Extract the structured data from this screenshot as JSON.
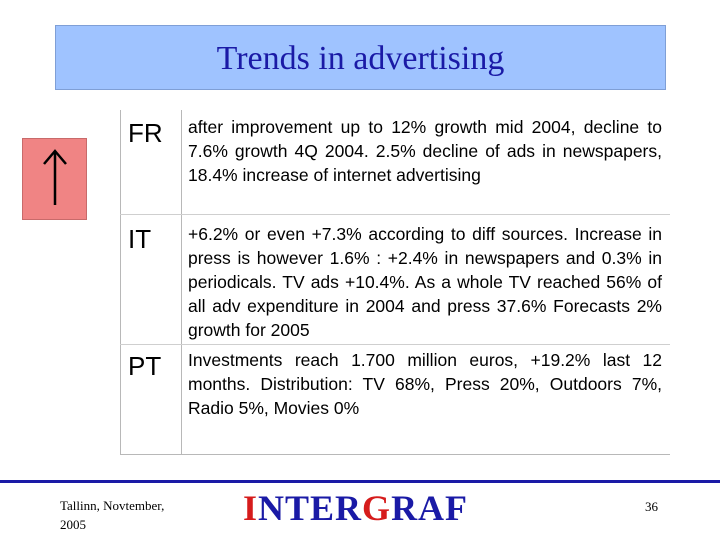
{
  "slide": {
    "title": "Trends in advertising"
  },
  "indicator": {
    "icon": "up-arrow-icon",
    "color": "#f08484"
  },
  "rows": [
    {
      "country": "FR",
      "text": "after improvement up to 12% growth mid 2004, decline to 7.6% growth 4Q 2004. 2.5% decline of ads in newspapers, 18.4% increase of internet advertising"
    },
    {
      "country": "IT",
      "text": "+6.2% or even +7.3% according to diff sources. Increase in press is however 1.6% : +2.4% in newspapers and 0.3% in periodicals. TV ads +10.4%. As a whole TV reached 56% of all adv expenditure in 2004 and press 37.6% Forecasts 2% growth for 2005"
    },
    {
      "country": "PT",
      "text": "Investments reach 1.700 million euros, +19.2% last 12 months. Distribution: TV 68%, Press 20%, Outdoors 7%, Radio 5%, Movies 0%"
    }
  ],
  "footer": {
    "location_date": "Tallinn, Novtember, 2005",
    "logo_part1": "I",
    "logo_part2": "NTER",
    "logo_part3": "G",
    "logo_part4": "RAF",
    "page_number": "36"
  },
  "colors": {
    "title_background": "#9fc3ff",
    "title_text": "#1a1aa6",
    "logo_blue": "#1a1aa6",
    "logo_red": "#d61c1c"
  }
}
